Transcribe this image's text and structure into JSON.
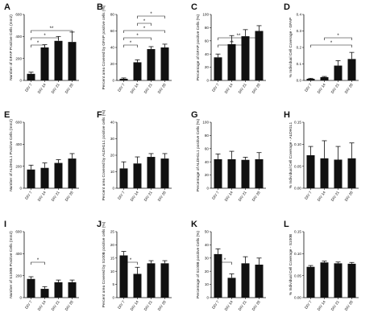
{
  "chart_data": [
    {
      "panel": "A",
      "type": "bar",
      "categories": [
        "DIV 7",
        "DIV 14",
        "DIV 21",
        "DIV 28"
      ],
      "values": [
        60,
        300,
        360,
        350
      ],
      "errors": [
        15,
        25,
        40,
        90
      ],
      "ylabel": "Number of GFAP Positive Cells (mm2)",
      "ylim": [
        0,
        600
      ],
      "yticks": [
        0,
        200,
        400,
        600
      ],
      "yticklabels": [
        "0",
        "200",
        "400",
        "600"
      ],
      "significance": [
        {
          "from": 0,
          "to": 1,
          "label": "*"
        },
        {
          "from": 0,
          "to": 2,
          "label": "*"
        },
        {
          "from": 0,
          "to": 3,
          "label": "**"
        }
      ]
    },
    {
      "panel": "B",
      "type": "bar",
      "categories": [
        "DIV 7",
        "DIV 14",
        "DIV 21",
        "DIV 28"
      ],
      "values": [
        2,
        22,
        38,
        40
      ],
      "errors": [
        1,
        3,
        3,
        4
      ],
      "ylabel": "Percent area Covered by GFAP positive cells (%)",
      "ylim": [
        0,
        80
      ],
      "yticks": [
        0,
        20,
        40,
        60,
        80
      ],
      "yticklabels": [
        "0",
        "20",
        "40",
        "60",
        "80"
      ],
      "significance": [
        {
          "from": 0,
          "to": 1,
          "label": "*"
        },
        {
          "from": 0,
          "to": 2,
          "label": "*"
        },
        {
          "from": 0,
          "to": 3,
          "label": "*"
        },
        {
          "from": 1,
          "to": 2,
          "label": "*"
        },
        {
          "from": 1,
          "to": 3,
          "label": "*"
        }
      ]
    },
    {
      "panel": "C",
      "type": "bar",
      "categories": [
        "DIV 7",
        "DIV 14",
        "DIV 21",
        "DIV 28"
      ],
      "values": [
        35,
        55,
        67,
        75
      ],
      "errors": [
        5,
        13,
        10,
        8
      ],
      "ylabel": "Percentage of GFAP positive Cells (%)",
      "ylim": [
        0,
        100
      ],
      "yticks": [
        0,
        20,
        40,
        60,
        80,
        100
      ],
      "yticklabels": [
        "0",
        "20",
        "40",
        "60",
        "80",
        "100"
      ],
      "significance": [
        {
          "from": 0,
          "to": 2,
          "label": "**"
        },
        {
          "from": 0,
          "to": 3,
          "label": "**"
        }
      ]
    },
    {
      "panel": "D",
      "type": "bar",
      "categories": [
        "DIV 7",
        "DIV 14",
        "DIV 21",
        "DIV 28"
      ],
      "values": [
        0.01,
        0.02,
        0.09,
        0.13
      ],
      "errors": [
        0.003,
        0.004,
        0.03,
        0.04
      ],
      "ylabel": "% Individual Cell Coverage - GFAP",
      "ylim": [
        0,
        0.4
      ],
      "yticks": [
        0,
        0.1,
        0.2,
        0.3,
        0.4
      ],
      "yticklabels": [
        "0.0",
        "0.1",
        "0.2",
        "0.3",
        "0.4"
      ],
      "significance": [
        {
          "from": 0,
          "to": 3,
          "label": "*"
        },
        {
          "from": 1,
          "to": 3,
          "label": "*"
        }
      ]
    },
    {
      "panel": "E",
      "type": "bar",
      "categories": [
        "DIV 7",
        "DIV 14",
        "DIV 21",
        "DIV 28"
      ],
      "values": [
        170,
        185,
        230,
        270
      ],
      "errors": [
        40,
        45,
        30,
        45
      ],
      "ylabel": "Number of ALDH1L1 Positive Cells (mm2)",
      "ylim": [
        0,
        600
      ],
      "yticks": [
        0,
        200,
        400,
        600
      ],
      "yticklabels": [
        "0",
        "200",
        "400",
        "600"
      ],
      "significance": []
    },
    {
      "panel": "F",
      "type": "bar",
      "categories": [
        "DIV 7",
        "DIV 14",
        "DIV 21",
        "DIV 28"
      ],
      "values": [
        12,
        15,
        19,
        18
      ],
      "errors": [
        4,
        4,
        2,
        3
      ],
      "ylabel": "Percent area Covered by ALDH1L1 positive cells (%)",
      "ylim": [
        0,
        40
      ],
      "yticks": [
        0,
        10,
        20,
        30,
        40
      ],
      "yticklabels": [
        "0",
        "10",
        "20",
        "30",
        "40"
      ],
      "significance": []
    },
    {
      "panel": "G",
      "type": "bar",
      "categories": [
        "DIV 7",
        "DIV 14",
        "DIV 21",
        "DIV 28"
      ],
      "values": [
        44,
        44,
        43,
        44
      ],
      "errors": [
        8,
        12,
        4,
        10
      ],
      "ylabel": "Percentage of ALDH1L1 positive Cells (%)",
      "ylim": [
        0,
        100
      ],
      "yticks": [
        0,
        20,
        40,
        60,
        80,
        100
      ],
      "yticklabels": [
        "0",
        "20",
        "40",
        "60",
        "80",
        "100"
      ],
      "significance": []
    },
    {
      "panel": "H",
      "type": "bar",
      "categories": [
        "DIV 7",
        "DIV 14",
        "DIV 21",
        "DIV 28"
      ],
      "values": [
        0.075,
        0.068,
        0.065,
        0.068
      ],
      "errors": [
        0.02,
        0.04,
        0.03,
        0.035
      ],
      "ylabel": "% Individual Cell Coverage - ALDH1L1",
      "ylim": [
        0,
        0.15
      ],
      "yticks": [
        0,
        0.05,
        0.1,
        0.15
      ],
      "yticklabels": [
        "0.00",
        "0.05",
        "0.10",
        "0.15"
      ],
      "significance": []
    },
    {
      "panel": "I",
      "type": "bar",
      "categories": [
        "DIV 7",
        "DIV 14",
        "DIV 21",
        "DIV 28"
      ],
      "values": [
        170,
        80,
        140,
        140
      ],
      "errors": [
        20,
        20,
        20,
        20
      ],
      "ylabel": "Number of S100B Positive Cells (mm2)",
      "ylim": [
        0,
        600
      ],
      "yticks": [
        0,
        200,
        400,
        600
      ],
      "yticklabels": [
        "0",
        "200",
        "400",
        "600"
      ],
      "significance": [
        {
          "from": 0,
          "to": 1,
          "label": "*"
        }
      ]
    },
    {
      "panel": "J",
      "type": "bar",
      "categories": [
        "DIV 7",
        "DIV 14",
        "DIV 21",
        "DIV 28"
      ],
      "values": [
        16,
        9,
        13,
        13
      ],
      "errors": [
        1.5,
        2.5,
        1,
        1
      ],
      "ylabel": "Percent area Covered by S100B positive cells (%)",
      "ylim": [
        0,
        25
      ],
      "yticks": [
        0,
        5,
        10,
        15,
        20,
        25
      ],
      "yticklabels": [
        "0",
        "5",
        "10",
        "15",
        "20",
        "25"
      ],
      "significance": [
        {
          "from": 0,
          "to": 1,
          "label": "*"
        }
      ]
    },
    {
      "panel": "K",
      "type": "bar",
      "categories": [
        "DIV 7",
        "DIV 14",
        "DIV 21",
        "DIV 28"
      ],
      "values": [
        33,
        15,
        26,
        25
      ],
      "errors": [
        4,
        3,
        5,
        5
      ],
      "ylabel": "Percentage of S100B positive Cells (%)",
      "ylim": [
        0,
        50
      ],
      "yticks": [
        0,
        10,
        20,
        30,
        40,
        50
      ],
      "yticklabels": [
        "0",
        "10",
        "20",
        "30",
        "40",
        "50"
      ],
      "significance": [
        {
          "from": 0,
          "to": 1,
          "label": "*"
        }
      ]
    },
    {
      "panel": "L",
      "type": "bar",
      "categories": [
        "DIV 7",
        "DIV 14",
        "DIV 21",
        "DIV 28"
      ],
      "values": [
        0.07,
        0.08,
        0.078,
        0.077
      ],
      "errors": [
        0.003,
        0.003,
        0.003,
        0.003
      ],
      "ylabel": "% Individual Cell Coverage - S100B",
      "ylim": [
        0,
        0.15
      ],
      "yticks": [
        0,
        0.05,
        0.1,
        0.15
      ],
      "yticklabels": [
        "0.00",
        "0.05",
        "0.10",
        "0.15"
      ],
      "significance": []
    }
  ],
  "colors": {
    "bar": "#111111",
    "axis": "#111111",
    "background": "#ffffff"
  }
}
